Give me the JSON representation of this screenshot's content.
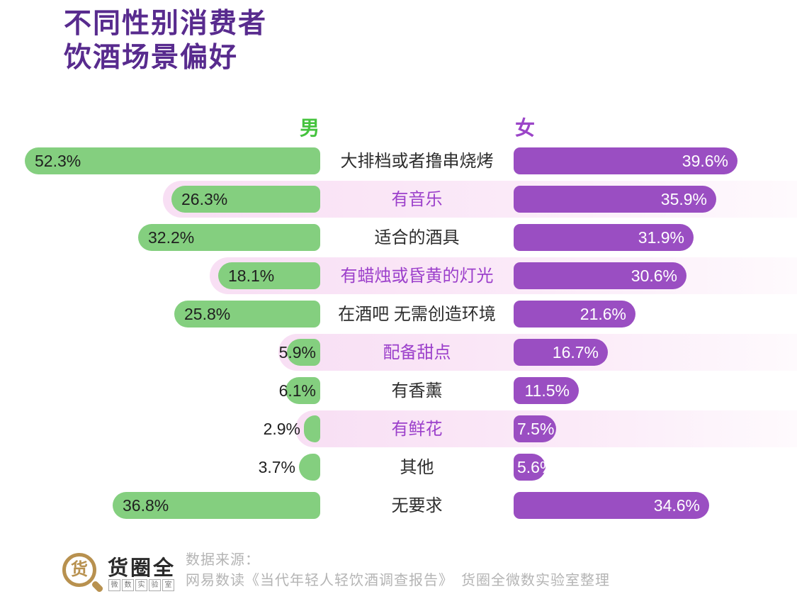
{
  "title": {
    "line1": "不同性别消费者",
    "line2": "饮酒场景偏好"
  },
  "legend": {
    "male": "男",
    "female": "女"
  },
  "colors": {
    "title": "#582b8e",
    "male_bar": "#84cf7f",
    "female_bar": "#9a4ec2",
    "male_legend": "#45c33e",
    "female_legend": "#9b45c8",
    "highlight_label": "#9c40cb",
    "row_label": "#2d2d2d",
    "highlight_band": "#f8dff4"
  },
  "chart_data": {
    "type": "bar",
    "orientation": "horizontal-diverging",
    "title": "不同性别消费者饮酒场景偏好",
    "unit": "%",
    "xlim": [
      0,
      52.5
    ],
    "categories": [
      "大排档或者撸串烧烤",
      "有音乐",
      "适合的酒具",
      "有蜡烛或昏黄的灯光",
      "在酒吧 无需创造环境",
      "配备甜点",
      "有香薰",
      "有鲜花",
      "其他",
      "无要求"
    ],
    "series": [
      {
        "name": "男",
        "side": "left",
        "values": [
          52.3,
          26.3,
          32.2,
          18.1,
          25.8,
          5.9,
          6.1,
          2.9,
          3.7,
          36.8
        ]
      },
      {
        "name": "女",
        "side": "right",
        "values": [
          39.6,
          35.9,
          31.9,
          30.6,
          21.6,
          16.7,
          11.5,
          7.5,
          5.6,
          34.6
        ]
      }
    ],
    "value_labels_male": [
      "52.3%",
      "26.3%",
      "32.2%",
      "18.1%",
      "25.8%",
      "5.9%",
      "6.1%",
      "2.9%",
      "3.7%",
      "36.8%"
    ],
    "value_labels_female": [
      "39.6%",
      "35.9%",
      "31.9%",
      "30.6%",
      "21.6%",
      "16.7%",
      "11.5%",
      "7.5%",
      "5.6%",
      "34.6%"
    ],
    "highlighted_rows": [
      1,
      3,
      5,
      7
    ],
    "legend_position": "top-inner"
  },
  "footer": {
    "logo_glyph": "货",
    "logo_name": "货圈全",
    "logo_subtitle_chars": [
      "微",
      "数",
      "实",
      "验",
      "室"
    ],
    "source_label": "数据来源：",
    "source_detail": "网易数读《当代年轻人轻饮酒调查报告》　货圈全微数实验室整理"
  }
}
